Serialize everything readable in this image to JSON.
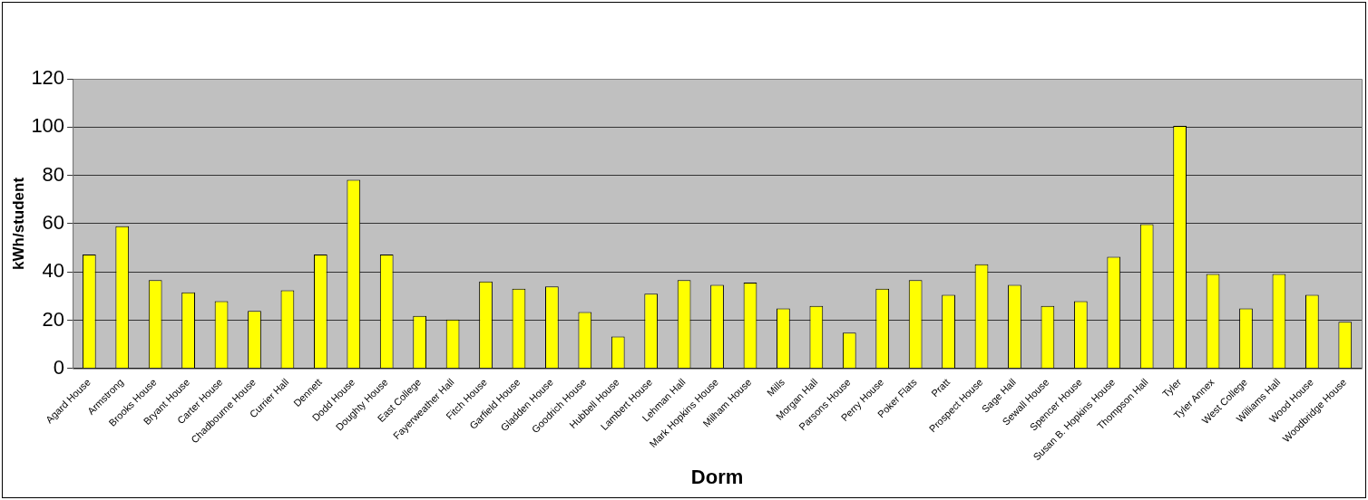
{
  "chart_data": {
    "type": "bar",
    "xlabel": "Dorm",
    "ylabel": "kWh/student",
    "categories": [
      "Agard House",
      "Armstrong",
      "Brooks House",
      "Bryant House",
      "Carter House",
      "Chadbourne House",
      "Currier Hall",
      "Dennett",
      "Dodd House",
      "Doughty House",
      "East College",
      "Fayerweather Hall",
      "Fitch House",
      "Garfield House",
      "Gladden House",
      "Goodrich House",
      "Hubbell House",
      "Lambert House",
      "Lehman Hall",
      "Mark Hopkins House",
      "Milham House",
      "Mills",
      "Morgan Hall",
      "Parsons House",
      "Perry House",
      "Poker Flats",
      "Pratt",
      "Prospect House",
      "Sage Hall",
      "Sewall House",
      "Spencer House",
      "Susan B. Hopkins House",
      "Thompson Hall",
      "Tyler",
      "Tyler Annex",
      "West College",
      "Williams Hall",
      "Wood House",
      "Woodbridge House"
    ],
    "values": [
      47.2,
      58.9,
      36.6,
      31.5,
      27.9,
      23.8,
      32.4,
      47.2,
      78.2,
      47.2,
      21.8,
      20.3,
      36.0,
      33.0,
      34.0,
      23.4,
      13.2,
      31.0,
      36.6,
      34.6,
      35.6,
      24.9,
      25.9,
      14.8,
      33.0,
      36.6,
      30.5,
      43.2,
      34.6,
      25.9,
      27.9,
      46.3,
      59.8,
      100.5,
      39.1,
      24.9,
      39.1,
      30.5,
      19.3
    ],
    "color": "#ffff00",
    "ylim": [
      0,
      120
    ],
    "yticks": [
      0,
      20,
      40,
      60,
      80,
      100,
      120
    ],
    "grid": "y",
    "legend": false
  }
}
